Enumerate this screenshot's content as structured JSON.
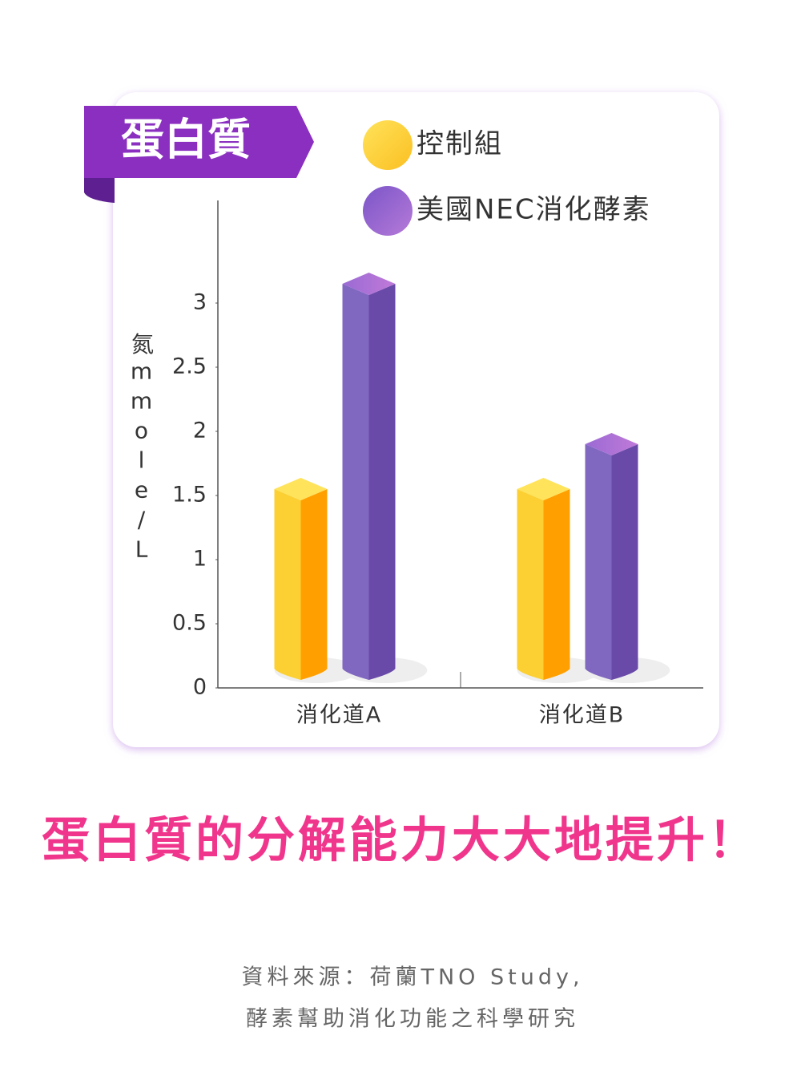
{
  "chart_data": {
    "type": "bar3d",
    "title": "蛋白質",
    "y_label": "氮mmole/L",
    "categories": [
      "消化道A",
      "消化道B"
    ],
    "series": [
      {
        "name": "控制組",
        "color": "#fcc82e",
        "values": [
          1.55,
          1.55
        ]
      },
      {
        "name": "美國NEC消化酵素",
        "color": "#7a5cbc",
        "values": [
          3.15,
          1.9
        ]
      }
    ],
    "ylim": [
      0,
      3.8
    ],
    "yticks": [
      0,
      0.5,
      1,
      1.5,
      2,
      2.5,
      3
    ],
    "grid": false
  },
  "headline": "蛋白質的分解能力大大地提升！",
  "source": [
    "資料來源：荷蘭TNO Study,",
    "酵素幫助消化功能之科學研究"
  ]
}
